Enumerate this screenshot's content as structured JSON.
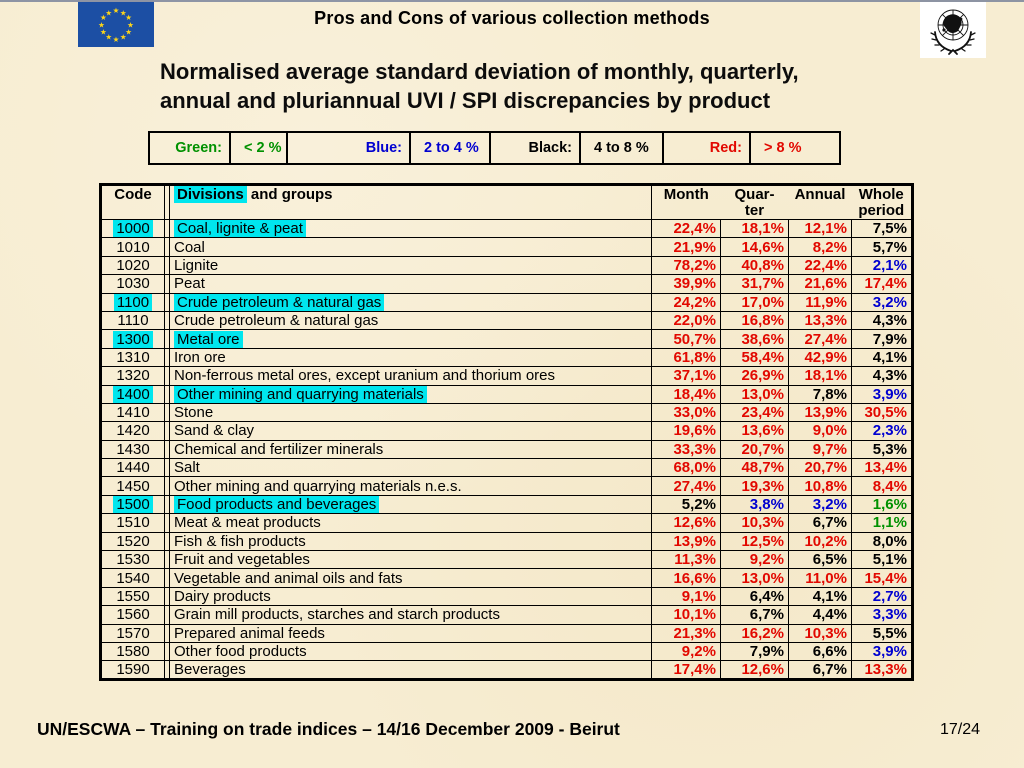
{
  "top_header": {
    "title": "Pros and Cons of various collection methods"
  },
  "icons": {
    "left_logo": "eu-flag",
    "right_logo": "un-emblem"
  },
  "slide_title": {
    "line1": "Normalised average standard deviation of monthly, quarterly,",
    "line2": "annual and pluriannual UVI / SPI discrepancies by product"
  },
  "legend": {
    "cells": [
      {
        "text": "Green:",
        "color": "green",
        "kind": "label"
      },
      {
        "text": "< 2 %",
        "color": "green",
        "kind": "value"
      },
      {
        "text": "Blue:",
        "color": "blue",
        "kind": "label"
      },
      {
        "text": "2 to 4 %",
        "color": "blue",
        "kind": "value"
      },
      {
        "text": "Black:",
        "color": "black",
        "kind": "label"
      },
      {
        "text": "4 to 8 %",
        "color": "black",
        "kind": "value"
      },
      {
        "text": "Red:",
        "color": "red",
        "kind": "label"
      },
      {
        "text": "> 8 %",
        "color": "red",
        "kind": "value"
      }
    ]
  },
  "table": {
    "header": {
      "code": "Code",
      "divisions_hl": "Divisions",
      "divisions_rest": " and groups",
      "month": "Month",
      "quarter_l1": "Quar-",
      "quarter_l2": "ter",
      "annual": "Annual",
      "whole_l1": "Whole",
      "whole_l2": "period"
    },
    "rows": [
      {
        "code": "1000",
        "name": "Coal, lignite & peat",
        "highlight": true,
        "values": [
          {
            "text": "22,4%",
            "color": "red"
          },
          {
            "text": "18,1%",
            "color": "red"
          },
          {
            "text": "12,1%",
            "color": "red"
          },
          {
            "text": "7,5%",
            "color": "black"
          }
        ]
      },
      {
        "code": "1010",
        "name": "Coal",
        "highlight": false,
        "values": [
          {
            "text": "21,9%",
            "color": "red"
          },
          {
            "text": "14,6%",
            "color": "red"
          },
          {
            "text": "8,2%",
            "color": "red"
          },
          {
            "text": "5,7%",
            "color": "black"
          }
        ]
      },
      {
        "code": "1020",
        "name": "Lignite",
        "highlight": false,
        "values": [
          {
            "text": "78,2%",
            "color": "red"
          },
          {
            "text": "40,8%",
            "color": "red"
          },
          {
            "text": "22,4%",
            "color": "red"
          },
          {
            "text": "2,1%",
            "color": "blue"
          }
        ]
      },
      {
        "code": "1030",
        "name": "Peat",
        "highlight": false,
        "values": [
          {
            "text": "39,9%",
            "color": "red"
          },
          {
            "text": "31,7%",
            "color": "red"
          },
          {
            "text": "21,6%",
            "color": "red"
          },
          {
            "text": "17,4%",
            "color": "red"
          }
        ]
      },
      {
        "code": "1100",
        "name": "Crude petroleum & natural gas",
        "highlight": true,
        "values": [
          {
            "text": "24,2%",
            "color": "red"
          },
          {
            "text": "17,0%",
            "color": "red"
          },
          {
            "text": "11,9%",
            "color": "red"
          },
          {
            "text": "3,2%",
            "color": "blue"
          }
        ]
      },
      {
        "code": "1110",
        "name": "Crude petroleum & natural gas",
        "highlight": false,
        "values": [
          {
            "text": "22,0%",
            "color": "red"
          },
          {
            "text": "16,8%",
            "color": "red"
          },
          {
            "text": "13,3%",
            "color": "red"
          },
          {
            "text": "4,3%",
            "color": "black"
          }
        ]
      },
      {
        "code": "1300",
        "name": "Metal ore",
        "highlight": true,
        "values": [
          {
            "text": "50,7%",
            "color": "red"
          },
          {
            "text": "38,6%",
            "color": "red"
          },
          {
            "text": "27,4%",
            "color": "red"
          },
          {
            "text": "7,9%",
            "color": "black"
          }
        ]
      },
      {
        "code": "1310",
        "name": "Iron ore",
        "highlight": false,
        "values": [
          {
            "text": "61,8%",
            "color": "red"
          },
          {
            "text": "58,4%",
            "color": "red"
          },
          {
            "text": "42,9%",
            "color": "red"
          },
          {
            "text": "4,1%",
            "color": "black"
          }
        ]
      },
      {
        "code": "1320",
        "name": "Non-ferrous metal ores, except uranium and thorium ores",
        "highlight": false,
        "values": [
          {
            "text": "37,1%",
            "color": "red"
          },
          {
            "text": "26,9%",
            "color": "red"
          },
          {
            "text": "18,1%",
            "color": "red"
          },
          {
            "text": "4,3%",
            "color": "black"
          }
        ]
      },
      {
        "code": "1400",
        "name": "Other mining and quarrying materials",
        "highlight": true,
        "values": [
          {
            "text": "18,4%",
            "color": "red"
          },
          {
            "text": "13,0%",
            "color": "red"
          },
          {
            "text": "7,8%",
            "color": "black"
          },
          {
            "text": "3,9%",
            "color": "blue"
          }
        ]
      },
      {
        "code": "1410",
        "name": "Stone",
        "highlight": false,
        "values": [
          {
            "text": "33,0%",
            "color": "red"
          },
          {
            "text": "23,4%",
            "color": "red"
          },
          {
            "text": "13,9%",
            "color": "red"
          },
          {
            "text": "30,5%",
            "color": "red"
          }
        ]
      },
      {
        "code": "1420",
        "name": "Sand & clay",
        "highlight": false,
        "values": [
          {
            "text": "19,6%",
            "color": "red"
          },
          {
            "text": "13,6%",
            "color": "red"
          },
          {
            "text": "9,0%",
            "color": "red"
          },
          {
            "text": "2,3%",
            "color": "blue"
          }
        ]
      },
      {
        "code": "1430",
        "name": "Chemical and fertilizer minerals",
        "highlight": false,
        "values": [
          {
            "text": "33,3%",
            "color": "red"
          },
          {
            "text": "20,7%",
            "color": "red"
          },
          {
            "text": "9,7%",
            "color": "red"
          },
          {
            "text": "5,3%",
            "color": "black"
          }
        ]
      },
      {
        "code": "1440",
        "name": "Salt",
        "highlight": false,
        "values": [
          {
            "text": "68,0%",
            "color": "red"
          },
          {
            "text": "48,7%",
            "color": "red"
          },
          {
            "text": "20,7%",
            "color": "red"
          },
          {
            "text": "13,4%",
            "color": "red"
          }
        ]
      },
      {
        "code": "1450",
        "name": "Other mining and quarrying materials n.e.s.",
        "highlight": false,
        "values": [
          {
            "text": "27,4%",
            "color": "red"
          },
          {
            "text": "19,3%",
            "color": "red"
          },
          {
            "text": "10,8%",
            "color": "red"
          },
          {
            "text": "8,4%",
            "color": "red"
          }
        ]
      },
      {
        "code": "1500",
        "name": "Food products and beverages",
        "highlight": true,
        "values": [
          {
            "text": "5,2%",
            "color": "black"
          },
          {
            "text": "3,8%",
            "color": "blue"
          },
          {
            "text": "3,2%",
            "color": "blue"
          },
          {
            "text": "1,6%",
            "color": "green"
          }
        ]
      },
      {
        "code": "1510",
        "name": "Meat & meat products",
        "highlight": false,
        "values": [
          {
            "text": "12,6%",
            "color": "red"
          },
          {
            "text": "10,3%",
            "color": "red"
          },
          {
            "text": "6,7%",
            "color": "black"
          },
          {
            "text": "1,1%",
            "color": "green"
          }
        ]
      },
      {
        "code": "1520",
        "name": "Fish & fish products",
        "highlight": false,
        "values": [
          {
            "text": "13,9%",
            "color": "red"
          },
          {
            "text": "12,5%",
            "color": "red"
          },
          {
            "text": "10,2%",
            "color": "red"
          },
          {
            "text": "8,0%",
            "color": "black"
          }
        ]
      },
      {
        "code": "1530",
        "name": "Fruit and vegetables",
        "highlight": false,
        "values": [
          {
            "text": "11,3%",
            "color": "red"
          },
          {
            "text": "9,2%",
            "color": "red"
          },
          {
            "text": "6,5%",
            "color": "black"
          },
          {
            "text": "5,1%",
            "color": "black"
          }
        ]
      },
      {
        "code": "1540",
        "name": "Vegetable and animal oils and fats",
        "highlight": false,
        "values": [
          {
            "text": "16,6%",
            "color": "red"
          },
          {
            "text": "13,0%",
            "color": "red"
          },
          {
            "text": "11,0%",
            "color": "red"
          },
          {
            "text": "15,4%",
            "color": "red"
          }
        ]
      },
      {
        "code": "1550",
        "name": "Dairy products",
        "highlight": false,
        "values": [
          {
            "text": "9,1%",
            "color": "red"
          },
          {
            "text": "6,4%",
            "color": "black"
          },
          {
            "text": "4,1%",
            "color": "black"
          },
          {
            "text": "2,7%",
            "color": "blue"
          }
        ]
      },
      {
        "code": "1560",
        "name": "Grain mill products, starches and starch products",
        "highlight": false,
        "values": [
          {
            "text": "10,1%",
            "color": "red"
          },
          {
            "text": "6,7%",
            "color": "black"
          },
          {
            "text": "4,4%",
            "color": "black"
          },
          {
            "text": "3,3%",
            "color": "blue"
          }
        ]
      },
      {
        "code": "1570",
        "name": "Prepared animal feeds",
        "highlight": false,
        "values": [
          {
            "text": "21,3%",
            "color": "red"
          },
          {
            "text": "16,2%",
            "color": "red"
          },
          {
            "text": "10,3%",
            "color": "red"
          },
          {
            "text": "5,5%",
            "color": "black"
          }
        ]
      },
      {
        "code": "1580",
        "name": "Other food products",
        "highlight": false,
        "values": [
          {
            "text": "9,2%",
            "color": "red"
          },
          {
            "text": "7,9%",
            "color": "black"
          },
          {
            "text": "6,6%",
            "color": "black"
          },
          {
            "text": "3,9%",
            "color": "blue"
          }
        ]
      },
      {
        "code": "1590",
        "name": "Beverages",
        "highlight": false,
        "values": [
          {
            "text": "17,4%",
            "color": "red"
          },
          {
            "text": "12,6%",
            "color": "red"
          },
          {
            "text": "6,7%",
            "color": "black"
          },
          {
            "text": "13,3%",
            "color": "red"
          }
        ]
      }
    ]
  },
  "footer": {
    "session": "UN/ESCWA – Training on trade indices – 14/16 December 2009 - Beirut",
    "page": "17/24"
  },
  "colors": {
    "red": "#e20800",
    "blue": "#0000d0",
    "green": "#009100",
    "black": "#000000",
    "highlight_cyan": "#00e6ee",
    "background": "#f7edd2",
    "eu_flag_blue": "#1c4fa4",
    "eu_star_yellow": "#ffd617"
  }
}
